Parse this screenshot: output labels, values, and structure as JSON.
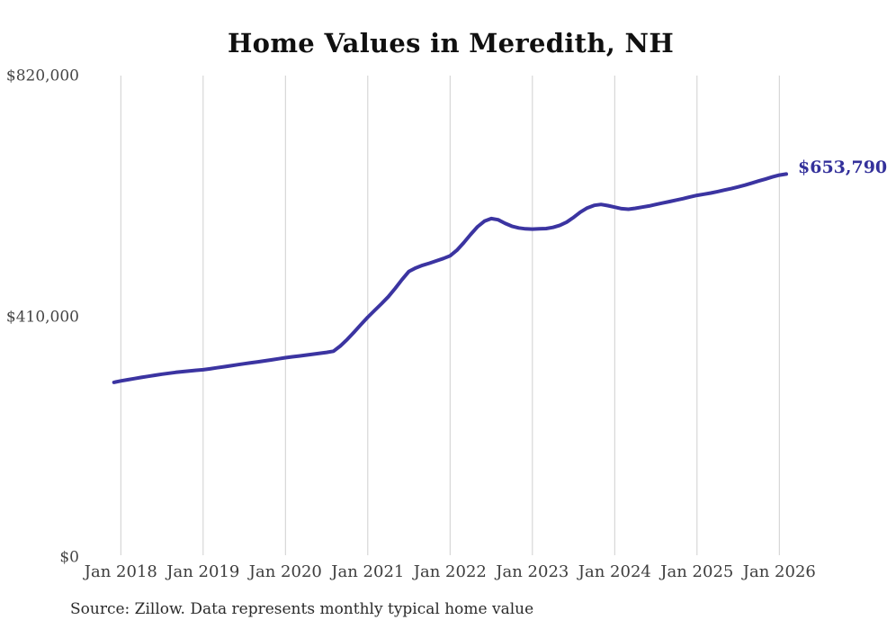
{
  "title": "Home Values in Meredith, NH",
  "source_note": "Source: Zillow. Data represents monthly typical home value",
  "colors": {
    "line": "#3b34a1",
    "end_label": "#34319b",
    "grid": "#cfcfcf",
    "title_text": "#101010",
    "axis_text": "#3d3d3d",
    "background": "#ffffff"
  },
  "chart_data": {
    "type": "line",
    "title": "Home Values in Meredith, NH",
    "xlabel": "",
    "ylabel": "",
    "unit": "USD",
    "frequency": "monthly",
    "start_month": "2017-12",
    "end_month": "2026-02",
    "grid": "vertical-only",
    "legend": "none",
    "ylim": [
      0,
      820000
    ],
    "y_ticks": [
      {
        "label": "$0",
        "value": 0
      },
      {
        "label": "$410,000",
        "value": 410000
      },
      {
        "label": "$820,000",
        "value": 820000
      }
    ],
    "x_tick_labels": [
      "Jan 2018",
      "Jan 2019",
      "Jan 2020",
      "Jan 2021",
      "Jan 2022",
      "Jan 2023",
      "Jan 2024",
      "Jan 2025",
      "Jan 2026"
    ],
    "series": [
      {
        "name": "Typical home value",
        "color": "#3b34a1",
        "final_value": 653790,
        "final_value_label": "$653,790",
        "values": [
          299000,
          301500,
          303500,
          305500,
          307500,
          309300,
          311200,
          313000,
          314500,
          316000,
          317300,
          318400,
          319500,
          320500,
          322000,
          323800,
          325600,
          327200,
          329000,
          330800,
          332400,
          334000,
          335600,
          337400,
          339200,
          341000,
          342500,
          344000,
          345500,
          347000,
          348500,
          350000,
          352000,
          361000,
          372000,
          384500,
          397500,
          410000,
          421500,
          433000,
          445000,
          459000,
          474000,
          488000,
          494000,
          498500,
          502000,
          506000,
          510000,
          514500,
          524000,
          537000,
          551000,
          564000,
          573500,
          578000,
          576000,
          570000,
          565000,
          562000,
          560500,
          560000,
          560500,
          561000,
          563000,
          566500,
          572000,
          580000,
          589000,
          596000,
          600500,
          602000,
          600000,
          597500,
          594800,
          594000,
          595500,
          597500,
          599500,
          602000,
          604500,
          607000,
          609500,
          612000,
          615000,
          617500,
          619500,
          621500,
          624000,
          626500,
          629000,
          632000,
          635000,
          638500,
          642000,
          645500,
          649000,
          652000,
          653790
        ]
      }
    ]
  }
}
